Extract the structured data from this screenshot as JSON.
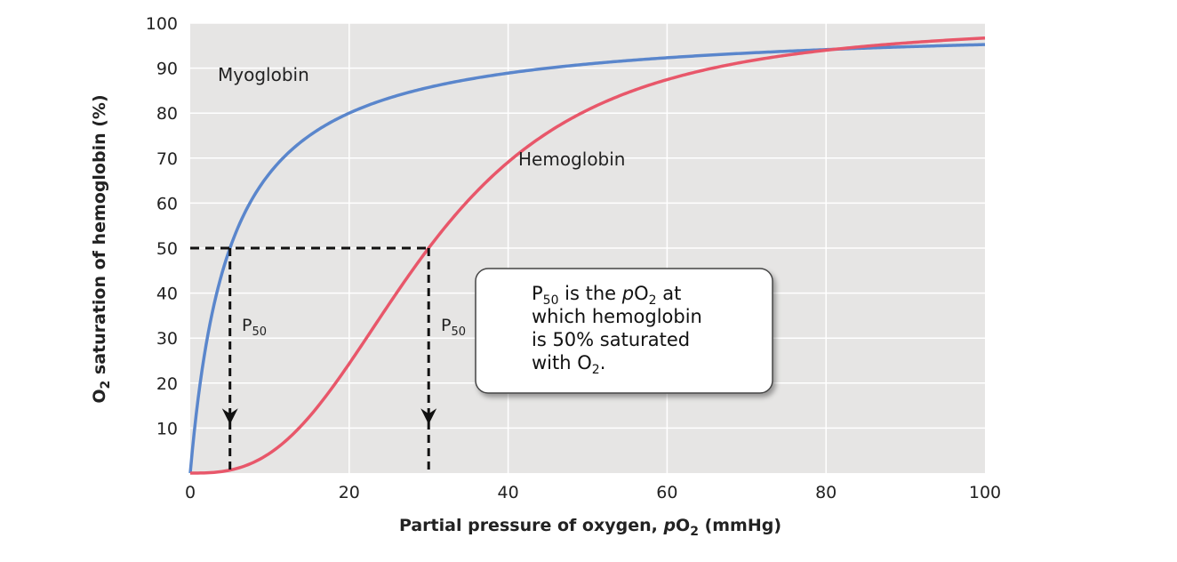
{
  "chart_data": {
    "type": "line",
    "xlabel_text": "Partial pressure of oxygen, ",
    "xlabel_italic": "p",
    "xlabel_o": "O",
    "xlabel_sub": "2",
    "xlabel_unit": " (mmHg)",
    "ylabel_text": "O",
    "ylabel_sub": "2",
    "ylabel_rest": " saturation of hemoglobin (%)",
    "xlim": [
      0,
      100
    ],
    "ylim": [
      0,
      100
    ],
    "x_ticks": [
      "0",
      "20",
      "40",
      "60",
      "80",
      "100"
    ],
    "y_ticks": [
      "10",
      "20",
      "30",
      "40",
      "50",
      "60",
      "70",
      "80",
      "90",
      "100"
    ],
    "grid": true,
    "series": [
      {
        "name": "Myoglobin",
        "color": "#5a86cc",
        "p50": 5,
        "hill": 1,
        "points": [
          [
            0,
            0
          ],
          [
            2,
            29
          ],
          [
            5,
            50
          ],
          [
            10,
            67
          ],
          [
            15,
            75
          ],
          [
            20,
            80
          ],
          [
            40,
            89
          ],
          [
            60,
            92
          ],
          [
            80,
            94
          ],
          [
            100,
            95
          ]
        ]
      },
      {
        "name": "Hemoglobin",
        "color": "#e8576a",
        "p50": 30,
        "hill": 2.8,
        "points": [
          [
            0,
            0
          ],
          [
            5,
            1
          ],
          [
            10,
            4.5
          ],
          [
            20,
            24
          ],
          [
            30,
            50
          ],
          [
            40,
            69
          ],
          [
            60,
            88
          ],
          [
            80,
            94
          ],
          [
            100,
            97
          ]
        ]
      }
    ],
    "p50_label": "P",
    "p50_sub": "50",
    "p50_markers": [
      {
        "x": 5,
        "y": 50
      },
      {
        "x": 30,
        "y": 50
      }
    ],
    "callout": {
      "line1_a": "P",
      "line1_sub": "50",
      "line1_b": " is the ",
      "line1_italic": "p",
      "line1_c": "O",
      "line1_sub2": "2",
      "line1_d": " at",
      "line2": "which hemoglobin",
      "line3": "is 50% saturated",
      "line4_a": "with O",
      "line4_sub": "2",
      "line4_b": "."
    }
  }
}
